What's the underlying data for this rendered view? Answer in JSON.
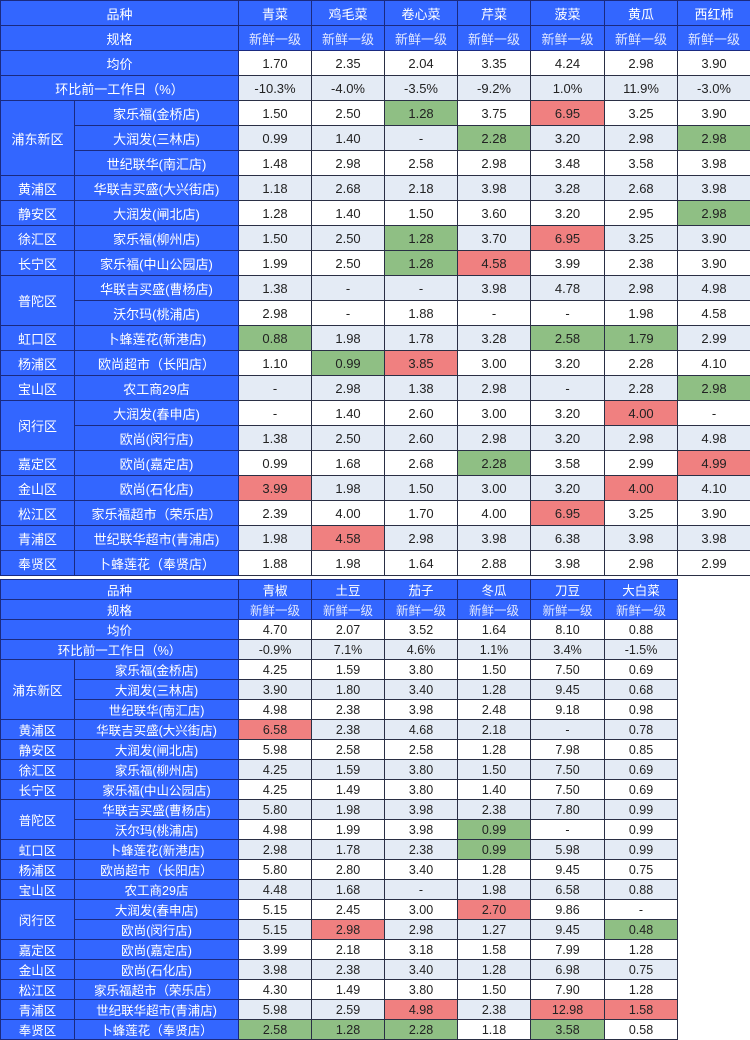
{
  "colors": {
    "header": "#3366ff",
    "alt_row": "#e4ebf5",
    "low_highlight": "#8fbf84",
    "high_highlight": "#f08080"
  },
  "tables": [
    {
      "variety_label": "品种",
      "spec_label": "规格",
      "avg_label": "均价",
      "change_label": "环比前一工作日（%）",
      "products": [
        "青菜",
        "鸡毛菜",
        "卷心菜",
        "芹菜",
        "菠菜",
        "黄瓜",
        "西红柿"
      ],
      "specs": [
        "新鲜一级",
        "新鲜一级",
        "新鲜一级",
        "新鲜一级",
        "新鲜一级",
        "新鲜一级",
        "新鲜一级"
      ],
      "avg": [
        "1.70",
        "2.35",
        "2.04",
        "3.35",
        "4.24",
        "2.98",
        "3.90"
      ],
      "change": [
        "-10.3%",
        "-4.0%",
        "-3.5%",
        "-9.2%",
        "1.0%",
        "11.9%",
        "-3.0%"
      ],
      "rows": [
        {
          "district": "浦东新区",
          "span": 3,
          "store": "家乐福(金桥店)",
          "values": [
            "1.50",
            "2.50",
            "1.28",
            "3.75",
            "6.95",
            "3.25",
            "3.90"
          ],
          "marks": [
            "",
            "",
            "g",
            "",
            "r",
            "",
            ""
          ]
        },
        {
          "store": "大润发(三林店)",
          "values": [
            "0.99",
            "1.40",
            "-",
            "2.28",
            "3.20",
            "2.98",
            "2.98"
          ],
          "marks": [
            "",
            "",
            "",
            "g",
            "",
            "",
            "g"
          ]
        },
        {
          "store": "世纪联华(南汇店)",
          "values": [
            "1.48",
            "2.98",
            "2.58",
            "2.98",
            "3.48",
            "3.58",
            "3.98"
          ],
          "marks": [
            "",
            "",
            "",
            "",
            "",
            "",
            ""
          ]
        },
        {
          "district": "黄浦区",
          "span": 1,
          "store": "华联吉买盛(大兴街店)",
          "values": [
            "1.18",
            "2.68",
            "2.18",
            "3.98",
            "3.28",
            "2.68",
            "3.98"
          ],
          "marks": [
            "",
            "",
            "",
            "",
            "",
            "",
            ""
          ]
        },
        {
          "district": "静安区",
          "span": 1,
          "store": "大润发(闸北店)",
          "values": [
            "1.28",
            "1.40",
            "1.50",
            "3.60",
            "3.20",
            "2.95",
            "2.98"
          ],
          "marks": [
            "",
            "",
            "",
            "",
            "",
            "",
            "g"
          ]
        },
        {
          "district": "徐汇区",
          "span": 1,
          "store": "家乐福(柳州店)",
          "values": [
            "1.50",
            "2.50",
            "1.28",
            "3.70",
            "6.95",
            "3.25",
            "3.90"
          ],
          "marks": [
            "",
            "",
            "g",
            "",
            "r",
            "",
            ""
          ]
        },
        {
          "district": "长宁区",
          "span": 1,
          "store": "家乐福(中山公园店)",
          "values": [
            "1.99",
            "2.50",
            "1.28",
            "4.58",
            "3.99",
            "2.38",
            "3.90"
          ],
          "marks": [
            "",
            "",
            "g",
            "r",
            "",
            "",
            ""
          ]
        },
        {
          "district": "普陀区",
          "span": 2,
          "store": "华联吉买盛(曹杨店)",
          "values": [
            "1.38",
            "-",
            "-",
            "3.98",
            "4.78",
            "2.98",
            "4.98"
          ],
          "marks": [
            "",
            "",
            "",
            "",
            "",
            "",
            ""
          ]
        },
        {
          "store": "沃尔玛(桃浦店)",
          "values": [
            "2.98",
            "-",
            "1.88",
            "-",
            "-",
            "1.98",
            "4.58"
          ],
          "marks": [
            "",
            "",
            "",
            "",
            "",
            "",
            ""
          ]
        },
        {
          "district": "虹口区",
          "span": 1,
          "store": "卜蜂莲花(新港店)",
          "values": [
            "0.88",
            "1.98",
            "1.78",
            "3.28",
            "2.58",
            "1.79",
            "2.99"
          ],
          "marks": [
            "g",
            "",
            "",
            "",
            "g",
            "g",
            ""
          ]
        },
        {
          "district": "杨浦区",
          "span": 1,
          "store": "欧尚超市（长阳店）",
          "values": [
            "1.10",
            "0.99",
            "3.85",
            "3.00",
            "3.20",
            "2.28",
            "4.10"
          ],
          "marks": [
            "",
            "g",
            "r",
            "",
            "",
            "",
            ""
          ]
        },
        {
          "district": "宝山区",
          "span": 1,
          "store": "农工商29店",
          "values": [
            "-",
            "2.98",
            "1.38",
            "2.98",
            "-",
            "2.28",
            "2.98"
          ],
          "marks": [
            "",
            "",
            "",
            "",
            "",
            "",
            "g"
          ]
        },
        {
          "district": "闵行区",
          "span": 2,
          "store": "大润发(春申店)",
          "values": [
            "-",
            "1.40",
            "2.60",
            "3.00",
            "3.20",
            "4.00",
            "-"
          ],
          "marks": [
            "",
            "",
            "",
            "",
            "",
            "r",
            ""
          ]
        },
        {
          "store": "欧尚(闵行店)",
          "values": [
            "1.38",
            "2.50",
            "2.60",
            "2.98",
            "3.20",
            "2.98",
            "4.98"
          ],
          "marks": [
            "",
            "",
            "",
            "",
            "",
            "",
            ""
          ]
        },
        {
          "district": "嘉定区",
          "span": 1,
          "store": "欧尚(嘉定店)",
          "values": [
            "0.99",
            "1.68",
            "2.68",
            "2.28",
            "3.58",
            "2.99",
            "4.99"
          ],
          "marks": [
            "",
            "",
            "",
            "g",
            "",
            "",
            "r"
          ]
        },
        {
          "district": "金山区",
          "span": 1,
          "store": "欧尚(石化店)",
          "values": [
            "3.99",
            "1.98",
            "1.50",
            "3.00",
            "3.20",
            "4.00",
            "4.10"
          ],
          "marks": [
            "r",
            "",
            "",
            "",
            "",
            "r",
            ""
          ]
        },
        {
          "district": "松江区",
          "span": 1,
          "store": "家乐福超市（荣乐店）",
          "values": [
            "2.39",
            "4.00",
            "1.70",
            "4.00",
            "6.95",
            "3.25",
            "3.90"
          ],
          "marks": [
            "",
            "",
            "",
            "",
            "r",
            "",
            ""
          ]
        },
        {
          "district": "青浦区",
          "span": 1,
          "store": "世纪联华超市(青浦店)",
          "values": [
            "1.98",
            "4.58",
            "2.98",
            "3.98",
            "6.38",
            "3.98",
            "3.98"
          ],
          "marks": [
            "",
            "r",
            "",
            "",
            "",
            "",
            ""
          ]
        },
        {
          "district": "奉贤区",
          "span": 1,
          "store": "卜蜂莲花（奉贤店）",
          "values": [
            "1.88",
            "1.98",
            "1.64",
            "2.88",
            "3.98",
            "2.98",
            "2.99"
          ],
          "marks": [
            "",
            "",
            "",
            "",
            "",
            "",
            ""
          ]
        }
      ]
    },
    {
      "variety_label": "品种",
      "spec_label": "规格",
      "avg_label": "均价",
      "change_label": "环比前一工作日（%）",
      "products": [
        "青椒",
        "土豆",
        "茄子",
        "冬瓜",
        "刀豆",
        "大白菜"
      ],
      "specs": [
        "新鲜一级",
        "新鲜一级",
        "新鲜一级",
        "新鲜一级",
        "新鲜一级",
        "新鲜一级"
      ],
      "avg": [
        "4.70",
        "2.07",
        "3.52",
        "1.64",
        "8.10",
        "0.88"
      ],
      "change": [
        "-0.9%",
        "7.1%",
        "4.6%",
        "1.1%",
        "3.4%",
        "-1.5%"
      ],
      "rows": [
        {
          "district": "浦东新区",
          "span": 3,
          "store": "家乐福(金桥店)",
          "values": [
            "4.25",
            "1.59",
            "3.80",
            "1.50",
            "7.50",
            "0.69"
          ],
          "marks": [
            "",
            "",
            "",
            "",
            "",
            ""
          ]
        },
        {
          "store": "大润发(三林店)",
          "values": [
            "3.90",
            "1.80",
            "3.40",
            "1.28",
            "9.45",
            "0.68"
          ],
          "marks": [
            "",
            "",
            "",
            "",
            "",
            ""
          ]
        },
        {
          "store": "世纪联华(南汇店)",
          "values": [
            "4.98",
            "2.38",
            "3.98",
            "2.48",
            "9.18",
            "0.98"
          ],
          "marks": [
            "",
            "",
            "",
            "",
            "",
            ""
          ]
        },
        {
          "district": "黄浦区",
          "span": 1,
          "store": "华联吉买盛(大兴街店)",
          "values": [
            "6.58",
            "2.38",
            "4.68",
            "2.18",
            "-",
            "0.78"
          ],
          "marks": [
            "r",
            "",
            "",
            "",
            "",
            ""
          ]
        },
        {
          "district": "静安区",
          "span": 1,
          "store": "大润发(闸北店)",
          "values": [
            "5.98",
            "2.58",
            "2.58",
            "1.28",
            "7.98",
            "0.85"
          ],
          "marks": [
            "",
            "",
            "",
            "",
            "",
            ""
          ]
        },
        {
          "district": "徐汇区",
          "span": 1,
          "store": "家乐福(柳州店)",
          "values": [
            "4.25",
            "1.59",
            "3.80",
            "1.50",
            "7.50",
            "0.69"
          ],
          "marks": [
            "",
            "",
            "",
            "",
            "",
            ""
          ]
        },
        {
          "district": "长宁区",
          "span": 1,
          "store": "家乐福(中山公园店)",
          "values": [
            "4.25",
            "1.49",
            "3.80",
            "1.40",
            "7.50",
            "0.69"
          ],
          "marks": [
            "",
            "",
            "",
            "",
            "",
            ""
          ]
        },
        {
          "district": "普陀区",
          "span": 2,
          "store": "华联吉买盛(曹杨店)",
          "values": [
            "5.80",
            "1.98",
            "3.98",
            "2.38",
            "7.80",
            "0.99"
          ],
          "marks": [
            "",
            "",
            "",
            "",
            "",
            ""
          ]
        },
        {
          "store": "沃尔玛(桃浦店)",
          "values": [
            "4.98",
            "1.99",
            "3.98",
            "0.99",
            "-",
            "0.99"
          ],
          "marks": [
            "",
            "",
            "",
            "g",
            "",
            ""
          ]
        },
        {
          "district": "虹口区",
          "span": 1,
          "store": "卜蜂莲花(新港店)",
          "values": [
            "2.98",
            "1.78",
            "2.38",
            "0.99",
            "5.98",
            "0.99"
          ],
          "marks": [
            "",
            "",
            "",
            "g",
            "",
            ""
          ]
        },
        {
          "district": "杨浦区",
          "span": 1,
          "store": "欧尚超市（长阳店）",
          "values": [
            "5.80",
            "2.80",
            "3.40",
            "1.28",
            "9.45",
            "0.75"
          ],
          "marks": [
            "",
            "",
            "",
            "",
            "",
            ""
          ]
        },
        {
          "district": "宝山区",
          "span": 1,
          "store": "农工商29店",
          "values": [
            "4.48",
            "1.68",
            "-",
            "1.98",
            "6.58",
            "0.88"
          ],
          "marks": [
            "",
            "",
            "",
            "",
            "",
            ""
          ]
        },
        {
          "district": "闵行区",
          "span": 2,
          "store": "大润发(春申店)",
          "values": [
            "5.15",
            "2.45",
            "3.00",
            "2.70",
            "9.86",
            "-"
          ],
          "marks": [
            "",
            "",
            "",
            "r",
            "",
            ""
          ]
        },
        {
          "store": "欧尚(闵行店)",
          "values": [
            "5.15",
            "2.98",
            "2.98",
            "1.27",
            "9.45",
            "0.48"
          ],
          "marks": [
            "",
            "r",
            "",
            "",
            "",
            "g"
          ]
        },
        {
          "district": "嘉定区",
          "span": 1,
          "store": "欧尚(嘉定店)",
          "values": [
            "3.99",
            "2.18",
            "3.18",
            "1.58",
            "7.99",
            "1.28"
          ],
          "marks": [
            "",
            "",
            "",
            "",
            "",
            ""
          ]
        },
        {
          "district": "金山区",
          "span": 1,
          "store": "欧尚(石化店)",
          "values": [
            "3.98",
            "2.38",
            "3.40",
            "1.28",
            "6.98",
            "0.75"
          ],
          "marks": [
            "",
            "",
            "",
            "",
            "",
            ""
          ]
        },
        {
          "district": "松江区",
          "span": 1,
          "store": "家乐福超市（荣乐店）",
          "values": [
            "4.30",
            "1.49",
            "3.80",
            "1.50",
            "7.90",
            "1.28"
          ],
          "marks": [
            "",
            "",
            "",
            "",
            "",
            ""
          ]
        },
        {
          "district": "青浦区",
          "span": 1,
          "store": "世纪联华超市(青浦店)",
          "values": [
            "5.98",
            "2.59",
            "4.98",
            "2.38",
            "12.98",
            "1.58"
          ],
          "marks": [
            "",
            "",
            "r",
            "",
            "r",
            "r"
          ]
        },
        {
          "district": "奉贤区",
          "span": 1,
          "store": "卜蜂莲花（奉贤店）",
          "values": [
            "2.58",
            "1.28",
            "2.28",
            "1.18",
            "3.58",
            "0.58"
          ],
          "marks": [
            "g",
            "g",
            "g",
            "",
            "g",
            ""
          ]
        }
      ]
    }
  ]
}
